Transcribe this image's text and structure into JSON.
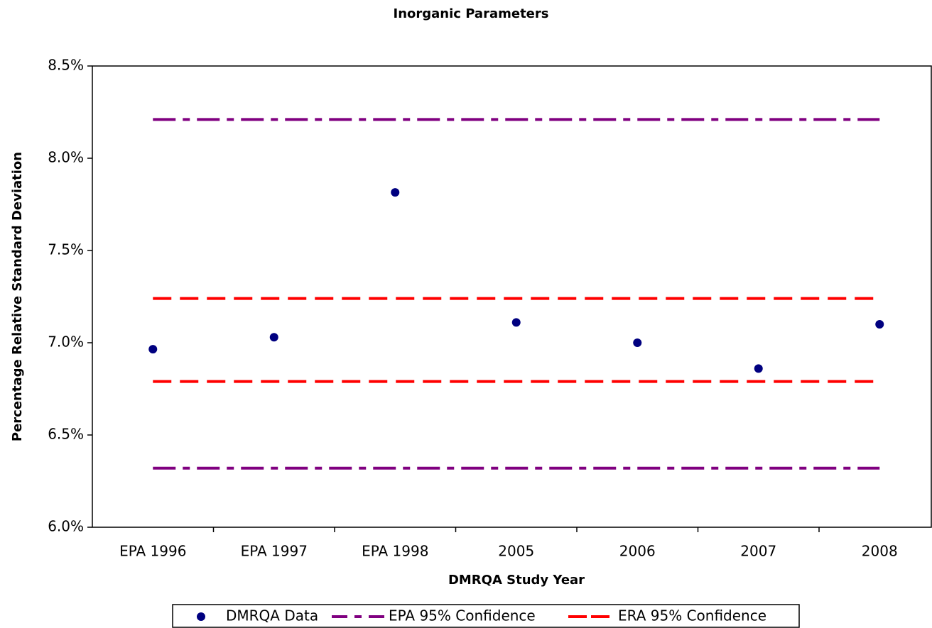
{
  "chart_data": {
    "type": "scatter",
    "title": "Inorganic Parameters",
    "x_label": "DMRQA Study Year",
    "y_label": "Percentage Relative Standard Deviation",
    "categories": [
      "EPA 1996",
      "EPA 1997",
      "EPA 1998",
      "2005",
      "2006",
      "2007",
      "2008"
    ],
    "ylim": [
      6.0,
      8.5
    ],
    "yticks": [
      {
        "value": 6.0,
        "label": "6.0%"
      },
      {
        "value": 6.5,
        "label": "6.5%"
      },
      {
        "value": 7.0,
        "label": "7.0%"
      },
      {
        "value": 7.5,
        "label": "7.5%"
      },
      {
        "value": 8.0,
        "label": "8.0%"
      },
      {
        "value": 8.5,
        "label": "8.5%"
      }
    ],
    "grid": false,
    "legend": "bottom",
    "series": [
      {
        "name": "DMRQA Data",
        "color": "#000080",
        "style": "marker",
        "values": [
          6.965,
          7.03,
          7.815,
          7.11,
          7.0,
          6.86,
          7.1
        ]
      },
      {
        "name": "EPA 95% Confidence",
        "color": "#800080",
        "style": "dashdot",
        "values": [
          8.21,
          8.21,
          8.21,
          8.21,
          8.21,
          8.21,
          8.21
        ],
        "lower_values": [
          6.32,
          6.32,
          6.32,
          6.32,
          6.32,
          6.32,
          6.32
        ]
      },
      {
        "name": "ERA 95% Confidence",
        "color": "#ff0000",
        "style": "dash",
        "values": [
          7.24,
          7.24,
          7.24,
          7.24,
          7.24,
          7.24,
          7.24
        ],
        "lower_values": [
          6.79,
          6.79,
          6.79,
          6.79,
          6.79,
          6.79,
          6.79
        ]
      }
    ]
  }
}
